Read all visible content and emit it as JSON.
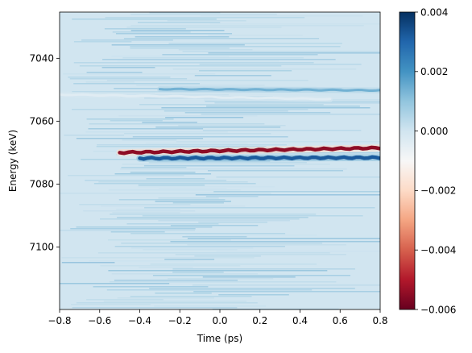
{
  "chart_data": {
    "type": "heatmap",
    "title": "",
    "xlabel": "Time (ps)",
    "ylabel": "Energy (keV)",
    "xlim": [
      -0.8,
      0.8
    ],
    "ylim": [
      7025.3,
      7119.9
    ],
    "y_inverted": true,
    "x_ticks": [
      {
        "value": -0.8,
        "label": "−0.8"
      },
      {
        "value": -0.6,
        "label": "−0.6"
      },
      {
        "value": -0.4,
        "label": "−0.4"
      },
      {
        "value": -0.2,
        "label": "−0.2"
      },
      {
        "value": 0.0,
        "label": "0.0"
      },
      {
        "value": 0.2,
        "label": "0.2"
      },
      {
        "value": 0.4,
        "label": "0.4"
      },
      {
        "value": 0.6,
        "label": "0.6"
      },
      {
        "value": 0.8,
        "label": "0.8"
      }
    ],
    "y_ticks": [
      {
        "value": 7040,
        "label": "7040"
      },
      {
        "value": 7060,
        "label": "7060"
      },
      {
        "value": 7080,
        "label": "7080"
      },
      {
        "value": 7100,
        "label": "7100"
      }
    ],
    "colormap": "RdBu",
    "background_value": 0.0008,
    "colorbar": {
      "vmin": -0.006,
      "vmax": 0.004,
      "ticks": [
        {
          "value": 0.004,
          "label": "0.004"
        },
        {
          "value": 0.002,
          "label": "0.002"
        },
        {
          "value": 0.0,
          "label": "0.000"
        },
        {
          "value": -0.002,
          "label": "−0.002"
        },
        {
          "value": -0.004,
          "label": "−0.004"
        },
        {
          "value": -0.006,
          "label": "−0.006"
        }
      ]
    },
    "features": [
      {
        "name": "negative-feature",
        "x_start": -0.5,
        "x_end": 0.8,
        "energy_start": 7070.0,
        "energy_end": 7068.5,
        "value": -0.0055
      },
      {
        "name": "positive-feature",
        "x_start": -0.4,
        "x_end": 0.8,
        "energy_start": 7071.8,
        "energy_end": 7071.6,
        "value": 0.0032
      },
      {
        "name": "faint-white-band",
        "x_start": -0.8,
        "x_end": 0.55,
        "energy_start": 7051.5,
        "energy_end": 7053.0,
        "value": -0.0004
      },
      {
        "name": "faint-blue-band",
        "x_start": -0.3,
        "x_end": 0.8,
        "energy_start": 7049.8,
        "energy_end": 7050.2,
        "value": 0.0014
      }
    ]
  }
}
